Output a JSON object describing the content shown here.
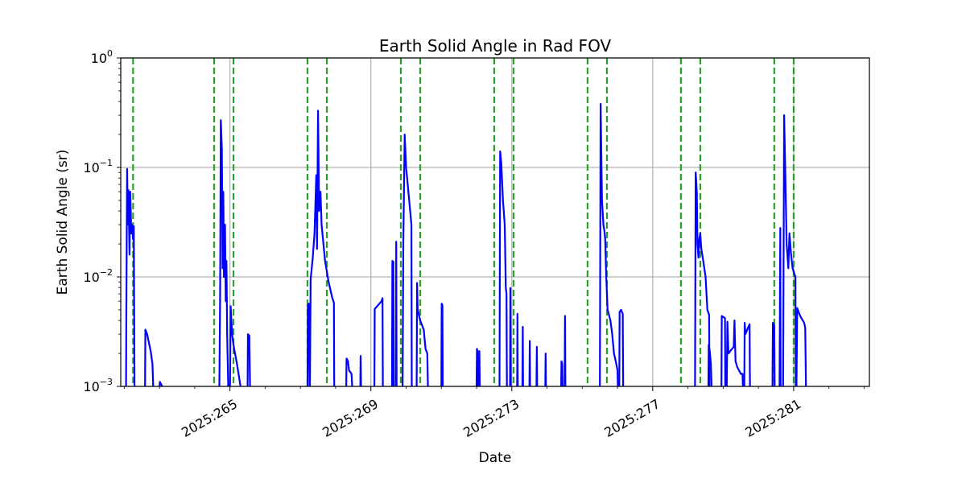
{
  "chart_data": {
    "type": "line",
    "title": "Earth Solid Angle in Rad FOV",
    "xlabel": "Date",
    "ylabel": "Earth Solid Angle (sr)",
    "yscale": "log",
    "ylim": [
      0.001,
      1
    ],
    "xlim": [
      261.9,
      283.15
    ],
    "grid": true,
    "x_tick_values": [
      265,
      269,
      273,
      277,
      281
    ],
    "x_tick_labels": [
      "2025:265",
      "2025:269",
      "2025:273",
      "2025:277",
      "2025:281"
    ],
    "y_ticks": [
      {
        "value": 0.001,
        "base": "10",
        "exp": "−3"
      },
      {
        "value": 0.01,
        "base": "10",
        "exp": "−2"
      },
      {
        "value": 0.1,
        "base": "10",
        "exp": "−1"
      },
      {
        "value": 1,
        "base": "10",
        "exp": "0"
      }
    ],
    "colors": {
      "series": "#0000ff",
      "markers": "#2ca02c",
      "grid": "#b0b0b0"
    },
    "vertical_markers": [
      262.25,
      264.55,
      265.1,
      267.2,
      267.75,
      269.85,
      270.4,
      272.5,
      273.05,
      275.15,
      275.7,
      277.8,
      278.35,
      280.45,
      281.0
    ],
    "series": [
      {
        "segments": [
          [
            [
              262.05,
              0.001
            ],
            [
              262.06,
              0.0055
            ],
            [
              262.08,
              0.097
            ],
            [
              262.1,
              0.03
            ],
            [
              262.12,
              0.062
            ],
            [
              262.15,
              0.016
            ],
            [
              262.17,
              0.06
            ],
            [
              262.2,
              0.025
            ],
            [
              262.22,
              0.03
            ],
            [
              262.25,
              0.022
            ],
            [
              262.27,
              0.029
            ],
            [
              262.29,
              0.001
            ]
          ],
          [
            [
              262.59,
              0.001
            ],
            [
              262.6,
              0.0033
            ],
            [
              262.65,
              0.003
            ],
            [
              262.7,
              0.0025
            ],
            [
              262.75,
              0.0021
            ],
            [
              262.8,
              0.0016
            ],
            [
              262.82,
              0.001
            ]
          ],
          [
            [
              263.0,
              0.001
            ],
            [
              263.01,
              0.0011
            ],
            [
              263.08,
              0.001
            ]
          ],
          [
            [
              264.7,
              0.001
            ],
            [
              264.72,
              0.006
            ],
            [
              264.74,
              0.27
            ],
            [
              264.77,
              0.15
            ],
            [
              264.79,
              0.012
            ],
            [
              264.81,
              0.06
            ],
            [
              264.83,
              0.01
            ],
            [
              264.86,
              0.03
            ],
            [
              264.88,
              0.006
            ],
            [
              264.9,
              0.014
            ],
            [
              264.92,
              0.003
            ],
            [
              264.95,
              0.001
            ]
          ],
          [
            [
              265.0,
              0.001
            ],
            [
              265.02,
              0.0054
            ],
            [
              265.06,
              0.003
            ],
            [
              265.1,
              0.0024
            ],
            [
              265.2,
              0.0016
            ],
            [
              265.28,
              0.0011
            ],
            [
              265.3,
              0.001
            ]
          ],
          [
            [
              265.5,
              0.001
            ],
            [
              265.51,
              0.003
            ],
            [
              265.55,
              0.0029
            ],
            [
              265.57,
              0.001
            ]
          ],
          [
            [
              267.2,
              0.001
            ],
            [
              267.21,
              0.0055
            ],
            [
              267.24,
              0.0057
            ],
            [
              267.26,
              0.001
            ]
          ],
          [
            [
              267.27,
              0.001
            ],
            [
              267.29,
              0.0095
            ],
            [
              267.35,
              0.015
            ],
            [
              267.4,
              0.025
            ],
            [
              267.45,
              0.085
            ],
            [
              267.47,
              0.018
            ],
            [
              267.5,
              0.33
            ],
            [
              267.53,
              0.04
            ],
            [
              267.57,
              0.06
            ],
            [
              267.6,
              0.03
            ],
            [
              267.7,
              0.014
            ],
            [
              267.8,
              0.009
            ],
            [
              267.9,
              0.0065
            ],
            [
              267.95,
              0.0058
            ],
            [
              267.96,
              0.001
            ]
          ],
          [
            [
              268.3,
              0.001
            ],
            [
              268.31,
              0.0018
            ],
            [
              268.35,
              0.0017
            ],
            [
              268.38,
              0.0014
            ],
            [
              268.45,
              0.0013
            ],
            [
              268.47,
              0.001
            ]
          ],
          [
            [
              268.7,
              0.001
            ],
            [
              268.71,
              0.0019
            ],
            [
              268.72,
              0.001
            ]
          ],
          [
            [
              269.1,
              0.001
            ],
            [
              269.11,
              0.0051
            ],
            [
              269.3,
              0.006
            ],
            [
              269.33,
              0.0064
            ],
            [
              269.34,
              0.001
            ]
          ],
          [
            [
              269.6,
              0.001
            ],
            [
              269.61,
              0.014
            ],
            [
              269.64,
              0.0138
            ],
            [
              269.65,
              0.001
            ]
          ],
          [
            [
              269.71,
              0.001
            ],
            [
              269.72,
              0.021
            ],
            [
              269.73,
              0.001
            ]
          ],
          [
            [
              269.9,
              0.001
            ],
            [
              269.92,
              0.02
            ],
            [
              269.96,
              0.2
            ],
            [
              270.0,
              0.1
            ],
            [
              270.1,
              0.045
            ],
            [
              270.15,
              0.03
            ],
            [
              270.16,
              0.001
            ]
          ],
          [
            [
              270.3,
              0.001
            ],
            [
              270.31,
              0.0088
            ],
            [
              270.33,
              0.005
            ],
            [
              270.4,
              0.004
            ],
            [
              270.5,
              0.0033
            ],
            [
              270.55,
              0.0022
            ],
            [
              270.6,
              0.002
            ],
            [
              270.62,
              0.001
            ]
          ],
          [
            [
              271.0,
              0.001
            ],
            [
              271.01,
              0.0057
            ],
            [
              271.03,
              0.0055
            ],
            [
              271.04,
              0.001
            ]
          ],
          [
            [
              272.0,
              0.001
            ],
            [
              272.01,
              0.0022
            ],
            [
              272.03,
              0.0021
            ],
            [
              272.04,
              0.001
            ]
          ],
          [
            [
              272.07,
              0.001
            ],
            [
              272.08,
              0.0021
            ],
            [
              272.09,
              0.001
            ]
          ],
          [
            [
              272.65,
              0.001
            ],
            [
              272.67,
              0.14
            ],
            [
              272.7,
              0.11
            ],
            [
              272.75,
              0.05
            ],
            [
              272.8,
              0.03
            ],
            [
              272.83,
              0.008
            ],
            [
              272.85,
              0.007
            ],
            [
              272.86,
              0.001
            ]
          ],
          [
            [
              272.95,
              0.001
            ],
            [
              272.96,
              0.0079
            ],
            [
              272.97,
              0.001
            ]
          ],
          [
            [
              273.15,
              0.001
            ],
            [
              273.16,
              0.0046
            ],
            [
              273.17,
              0.001
            ]
          ],
          [
            [
              273.3,
              0.001
            ],
            [
              273.31,
              0.0035
            ],
            [
              273.32,
              0.001
            ]
          ],
          [
            [
              273.5,
              0.001
            ],
            [
              273.51,
              0.0026
            ],
            [
              273.52,
              0.001
            ]
          ],
          [
            [
              273.7,
              0.001
            ],
            [
              273.71,
              0.0023
            ],
            [
              273.72,
              0.001
            ]
          ],
          [
            [
              273.95,
              0.001
            ],
            [
              273.96,
              0.002
            ],
            [
              273.97,
              0.001
            ]
          ],
          [
            [
              274.4,
              0.001
            ],
            [
              274.41,
              0.0017
            ],
            [
              274.43,
              0.0016
            ],
            [
              274.44,
              0.001
            ]
          ],
          [
            [
              274.5,
              0.001
            ],
            [
              274.51,
              0.0044
            ],
            [
              274.52,
              0.001
            ]
          ],
          [
            [
              275.5,
              0.001
            ],
            [
              275.52,
              0.38
            ],
            [
              275.56,
              0.05
            ],
            [
              275.6,
              0.03
            ],
            [
              275.63,
              0.026
            ],
            [
              275.65,
              0.022
            ],
            [
              275.68,
              0.01
            ],
            [
              275.72,
              0.005
            ],
            [
              275.8,
              0.004
            ],
            [
              275.85,
              0.003
            ],
            [
              275.9,
              0.002
            ],
            [
              275.95,
              0.0017
            ],
            [
              276.0,
              0.0014
            ],
            [
              276.01,
              0.001
            ]
          ],
          [
            [
              276.05,
              0.001
            ],
            [
              276.06,
              0.0048
            ],
            [
              276.1,
              0.005
            ],
            [
              276.15,
              0.0046
            ],
            [
              276.16,
              0.001
            ]
          ],
          [
            [
              278.2,
              0.001
            ],
            [
              278.22,
              0.09
            ],
            [
              278.25,
              0.06
            ],
            [
              278.27,
              0.02
            ],
            [
              278.3,
              0.015
            ],
            [
              278.32,
              0.022
            ],
            [
              278.35,
              0.025
            ],
            [
              278.38,
              0.018
            ],
            [
              278.42,
              0.015
            ],
            [
              278.5,
              0.01
            ],
            [
              278.55,
              0.005
            ],
            [
              278.6,
              0.0045
            ],
            [
              278.61,
              0.001
            ]
          ],
          [
            [
              278.58,
              0.001
            ],
            [
              278.59,
              0.0024
            ],
            [
              278.62,
              0.0021
            ],
            [
              278.65,
              0.0016
            ],
            [
              278.67,
              0.001
            ]
          ],
          [
            [
              278.95,
              0.001
            ],
            [
              278.96,
              0.0044
            ],
            [
              279.05,
              0.0042
            ],
            [
              279.06,
              0.001
            ]
          ],
          [
            [
              279.1,
              0.001
            ],
            [
              279.12,
              0.0039
            ],
            [
              279.15,
              0.002
            ],
            [
              279.2,
              0.0021
            ],
            [
              279.25,
              0.0022
            ],
            [
              279.3,
              0.0023
            ],
            [
              279.32,
              0.004
            ],
            [
              279.35,
              0.0017
            ],
            [
              279.4,
              0.0015
            ],
            [
              279.45,
              0.0014
            ],
            [
              279.5,
              0.0013
            ],
            [
              279.55,
              0.0013
            ],
            [
              279.56,
              0.001
            ]
          ],
          [
            [
              279.6,
              0.001
            ],
            [
              279.61,
              0.0038
            ],
            [
              279.63,
              0.003
            ],
            [
              279.7,
              0.0034
            ],
            [
              279.75,
              0.0037
            ],
            [
              279.76,
              0.001
            ]
          ],
          [
            [
              280.4,
              0.001
            ],
            [
              280.41,
              0.0038
            ],
            [
              280.45,
              0.0036
            ],
            [
              280.46,
              0.001
            ]
          ],
          [
            [
              280.6,
              0.001
            ],
            [
              280.62,
              0.028
            ],
            [
              280.63,
              0.001
            ]
          ],
          [
            [
              280.7,
              0.001
            ],
            [
              280.73,
              0.3
            ],
            [
              280.76,
              0.1
            ],
            [
              280.8,
              0.02
            ],
            [
              280.85,
              0.012
            ],
            [
              280.88,
              0.025
            ],
            [
              280.92,
              0.017
            ],
            [
              280.97,
              0.012
            ],
            [
              281.05,
              0.01
            ],
            [
              281.06,
              0.001
            ]
          ],
          [
            [
              281.08,
              0.001
            ],
            [
              281.1,
              0.0052
            ],
            [
              281.15,
              0.0047
            ],
            [
              281.2,
              0.0043
            ],
            [
              281.3,
              0.0038
            ],
            [
              281.33,
              0.0034
            ],
            [
              281.35,
              0.001
            ]
          ]
        ]
      }
    ]
  }
}
